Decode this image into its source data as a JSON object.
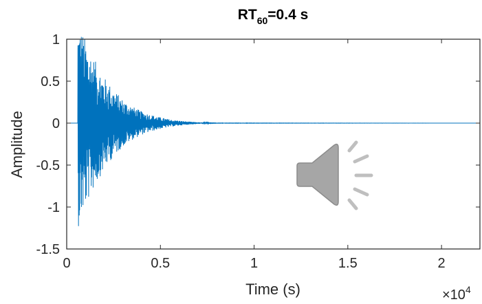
{
  "chart_data": {
    "type": "line",
    "title": {
      "prefix": "RT",
      "subscript": "60",
      "suffix": "=0.4 s"
    },
    "xlabel": "Time (s)",
    "ylabel": "Amplitude",
    "xlim": [
      0,
      22050
    ],
    "ylim": [
      -1.5,
      1
    ],
    "x_exponent_label": {
      "base": "×10",
      "power": "4"
    },
    "x_ticks": [
      {
        "value": 0,
        "label": "0"
      },
      {
        "value": 5000,
        "label": "0.5"
      },
      {
        "value": 10000,
        "label": "1"
      },
      {
        "value": 15000,
        "label": "1.5"
      },
      {
        "value": 20000,
        "label": "2"
      }
    ],
    "y_ticks": [
      {
        "value": 1,
        "label": "1"
      },
      {
        "value": 0.5,
        "label": "0.5"
      },
      {
        "value": 0,
        "label": "0"
      },
      {
        "value": -0.5,
        "label": "-0.5"
      },
      {
        "value": -1,
        "label": "-1"
      },
      {
        "value": -1.5,
        "label": "-1.5"
      }
    ],
    "series": [
      {
        "color": "#0072BD",
        "signal_start": 600,
        "envelope_points": [
          [
            0,
            0
          ],
          [
            599,
            0
          ],
          [
            600,
            1.25
          ],
          [
            1000,
            1.0
          ],
          [
            1500,
            0.75
          ],
          [
            2000,
            0.55
          ],
          [
            2500,
            0.4
          ],
          [
            3000,
            0.28
          ],
          [
            3500,
            0.2
          ],
          [
            4000,
            0.14
          ],
          [
            4500,
            0.1
          ],
          [
            5000,
            0.07
          ],
          [
            5500,
            0.045
          ],
          [
            6000,
            0.03
          ],
          [
            6500,
            0.018
          ],
          [
            7000,
            0.01
          ],
          [
            7500,
            0.005
          ],
          [
            8000,
            0.002
          ],
          [
            22050,
            0
          ]
        ]
      }
    ],
    "grid": false,
    "box": true
  },
  "audio_icon": {
    "icon": "speaker-icon",
    "color": "#a6a6a6"
  }
}
